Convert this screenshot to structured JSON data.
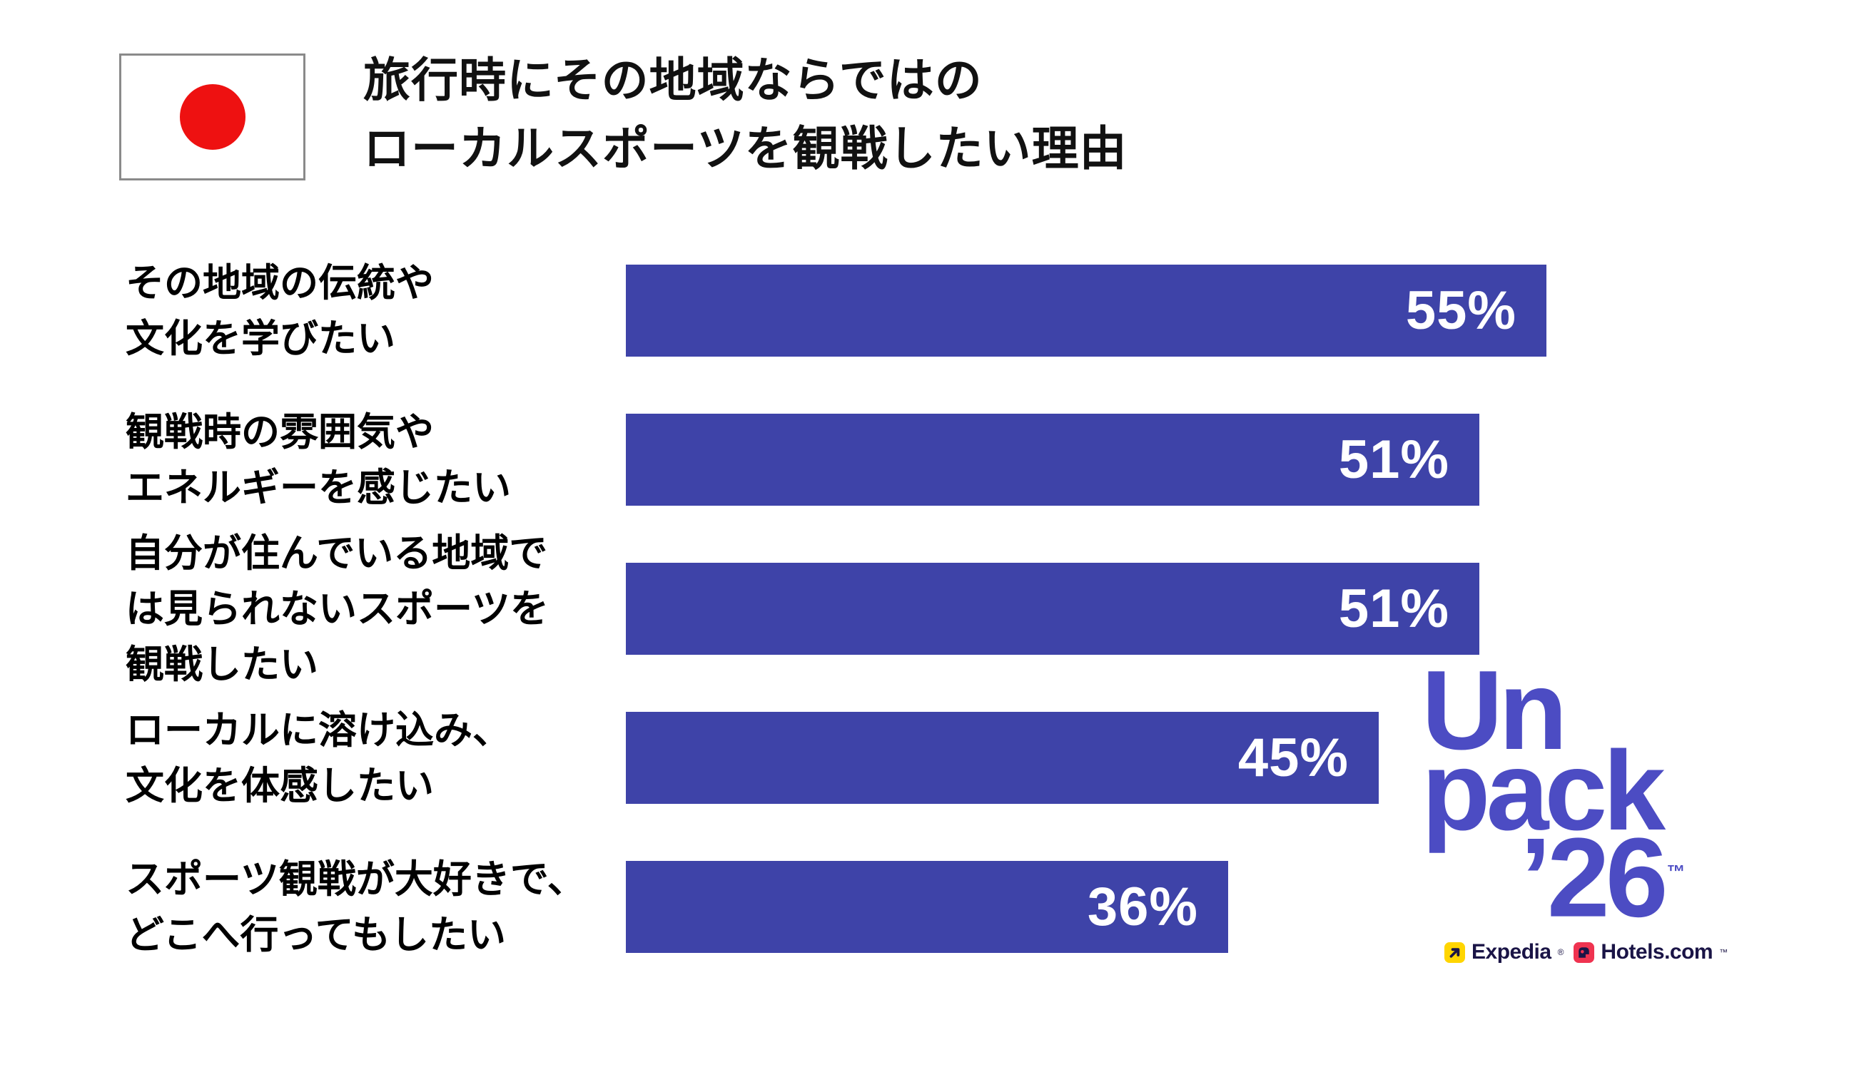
{
  "page": {
    "background": "#FFFFFF"
  },
  "header": {
    "flag": "japan-flag",
    "flag_circle_color": "#EE1111",
    "flag_border_color": "#8A8A8A",
    "title_line1": "旅行時にその地域ならではの",
    "title_line2": "ローカルスポーツを観戦したい理由"
  },
  "chart_data": {
    "type": "bar",
    "orientation": "horizontal",
    "title": "旅行時にその地域ならではのローカルスポーツを観戦したい理由",
    "categories": [
      "その地域の伝統や\n文化を学びたい",
      "観戦時の雰囲気や\nエネルギーを感じたい",
      "自分が住んでいる地域で\nは見られないスポーツを\n観戦したい",
      "ローカルに溶け込み、\n文化を体感したい",
      "スポーツ観戦が大好きで、\nどこへ行ってもしたい"
    ],
    "values": [
      55,
      51,
      51,
      45,
      36
    ],
    "value_labels": [
      "55%",
      "51%",
      "51%",
      "45%",
      "36%"
    ],
    "xlabel": "",
    "ylabel": "",
    "xlim": [
      0,
      60
    ],
    "grid": false,
    "legend": false,
    "bar_color": "#3E43A8",
    "value_label_color": "#FFFFFF",
    "category_label_color": "#000000"
  },
  "logo": {
    "stack": [
      "Un",
      "pack",
      "’26"
    ],
    "trademark": "™",
    "color": "#4C4CC3",
    "partner_text_color": "#1A1446",
    "partners": [
      {
        "label": "Expedia",
        "mark": "®",
        "icon": "expedia-arrow-icon",
        "icon_bg": "#FFD500",
        "icon_fg": "#1A1446"
      },
      {
        "label": "Hotels.com",
        "mark": "™",
        "icon": "hotels-com-icon",
        "icon_bg": "#EF3350",
        "icon_fg": "#1A1446"
      }
    ]
  }
}
